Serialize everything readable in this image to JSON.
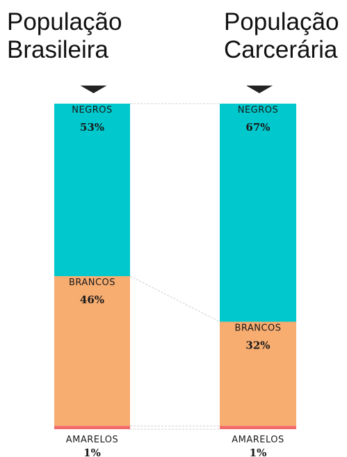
{
  "chart_data": {
    "type": "bar",
    "stacked": true,
    "percent": true,
    "categories": [
      "População\nBrasileira",
      "População\nCarcerária"
    ],
    "series": [
      {
        "name": "NEGROS",
        "values": [
          53,
          67
        ],
        "labels": [
          "53%",
          "67%"
        ],
        "color": "#00c8cc"
      },
      {
        "name": "BRANCOS",
        "values": [
          46,
          32
        ],
        "labels": [
          "46%",
          "32%"
        ],
        "color": "#f7ac70"
      },
      {
        "name": "AMARELOS",
        "values": [
          1,
          1
        ],
        "labels": [
          "1%",
          "1%"
        ],
        "color": "#f26a6a"
      }
    ],
    "label_color": "#1a1a1a",
    "connector_color": "#cfcfcf",
    "arrow_color": "#222222"
  }
}
